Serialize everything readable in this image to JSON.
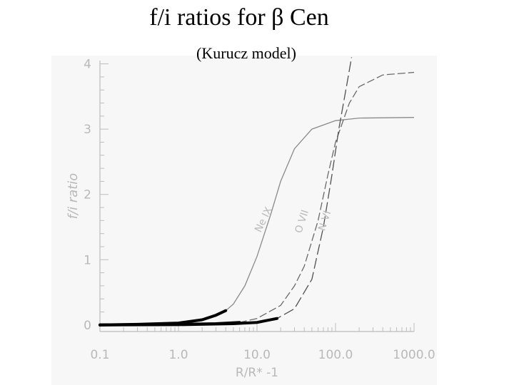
{
  "title": "f/i ratios for β Cen",
  "subtitle": "(Kurucz model)",
  "chart_data": {
    "type": "line",
    "xlabel": "R/R* -1",
    "ylabel": "f/i ratio",
    "xscale": "log",
    "xlim": [
      0.1,
      1000.0
    ],
    "ylim": [
      -0.1,
      4.05
    ],
    "x_ticks": [
      "0.1",
      "1.0",
      "10.0",
      "100.0",
      "1000.0"
    ],
    "y_ticks": [
      "0",
      "1",
      "2",
      "3",
      "4"
    ],
    "series": [
      {
        "name": "Ne IX",
        "points": [
          [
            0.1,
            0.0
          ],
          [
            0.3,
            0.01
          ],
          [
            1,
            0.03
          ],
          [
            2,
            0.08
          ],
          [
            3,
            0.15
          ],
          [
            4,
            0.22
          ],
          [
            5,
            0.32
          ],
          [
            7,
            0.6
          ],
          [
            10,
            1.05
          ],
          [
            15,
            1.7
          ],
          [
            20,
            2.2
          ],
          [
            30,
            2.7
          ],
          [
            50,
            3.0
          ],
          [
            100,
            3.13
          ],
          [
            200,
            3.17
          ],
          [
            1000,
            3.18
          ]
        ],
        "thick_until": 4
      },
      {
        "name": "O VII",
        "points": [
          [
            0.1,
            0.0
          ],
          [
            1,
            0.01
          ],
          [
            3,
            0.02
          ],
          [
            6,
            0.04
          ],
          [
            10,
            0.1
          ],
          [
            20,
            0.3
          ],
          [
            30,
            0.6
          ],
          [
            40,
            0.9
          ],
          [
            60,
            1.6
          ],
          [
            80,
            2.3
          ],
          [
            100,
            2.8
          ],
          [
            150,
            3.4
          ],
          [
            200,
            3.65
          ],
          [
            400,
            3.83
          ],
          [
            1000,
            3.87
          ]
        ],
        "thick_until": 6
      },
      {
        "name": "N VI",
        "points": [
          [
            0.1,
            0.0
          ],
          [
            1,
            0.005
          ],
          [
            5,
            0.02
          ],
          [
            10,
            0.04
          ],
          [
            18,
            0.1
          ],
          [
            30,
            0.25
          ],
          [
            50,
            0.7
          ],
          [
            70,
            1.5
          ],
          [
            90,
            2.3
          ],
          [
            110,
            3.0
          ],
          [
            140,
            3.7
          ],
          [
            160,
            4.1
          ]
        ],
        "thick_until": 18
      }
    ],
    "annotations": [
      {
        "text": "Ne IX",
        "series": "Ne IX"
      },
      {
        "text": "O VII",
        "series": "O VII"
      },
      {
        "text": "N VI",
        "series": "N VI"
      }
    ]
  }
}
